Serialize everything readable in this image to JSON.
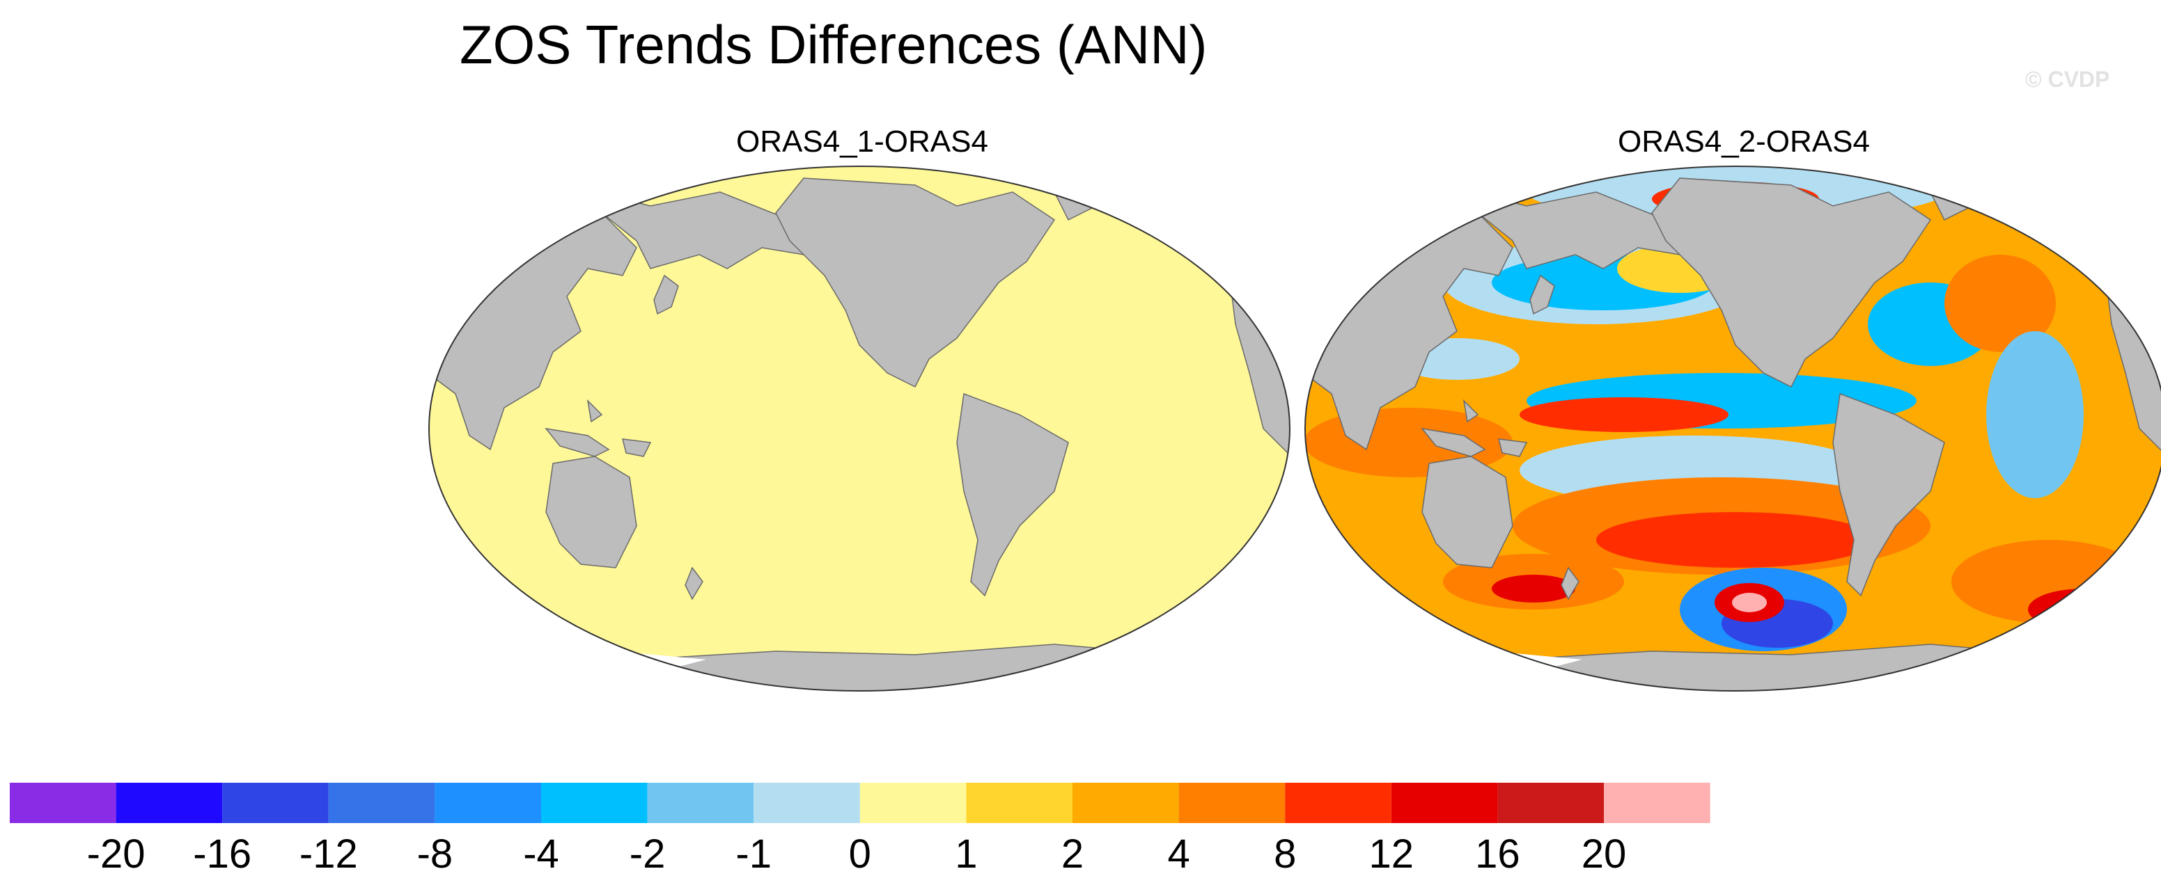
{
  "title": "ZOS Trends Differences (ANN)",
  "watermark": "© CVDP",
  "panels": [
    {
      "label": "ORAS4_1-ORAS4",
      "field": "uniform (all ocean in the 0 to 1 class)"
    },
    {
      "label": "ORAS4_2-ORAS4",
      "field": "spatially varying differences"
    }
  ],
  "colorbar": {
    "ticks": [
      "-20",
      "-16",
      "-12",
      "-8",
      "-4",
      "-2",
      "-1",
      "0",
      "1",
      "2",
      "4",
      "8",
      "12",
      "16",
      "20"
    ],
    "colors": [
      "#8a2be6",
      "#1f0aff",
      "#2f45e6",
      "#3573e8",
      "#1e90ff",
      "#00bfff",
      "#70c6f0",
      "#b3def2",
      "#fff899",
      "#ffd52e",
      "#ffaa00",
      "#ff7f00",
      "#ff2d00",
      "#e60000",
      "#cc1a1a",
      "#ffb0b0"
    ]
  },
  "colors": {
    "land": "#bdbdbd",
    "ocean_uniform": "#fff899"
  }
}
